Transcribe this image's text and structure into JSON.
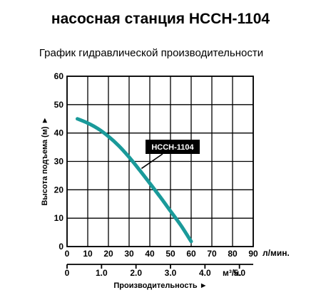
{
  "title": "насосная станция НССН-1104",
  "subtitle": "График гидравлической производительности",
  "chart_data": {
    "type": "line",
    "xlabel": "Производительность ►",
    "ylabel": "Высота подъема (м) ►",
    "x_unit_top": "л/мин.",
    "x_unit_bottom": "м³/ч.",
    "xlim": [
      0,
      90
    ],
    "ylim": [
      0,
      60
    ],
    "x_ticks": [
      "0",
      "10",
      "20",
      "30",
      "40",
      "50",
      "60",
      "70",
      "80",
      "90"
    ],
    "y_ticks": [
      "0",
      "10",
      "20",
      "30",
      "40",
      "50",
      "60"
    ],
    "secondary_x_ticks": [
      {
        "label": "0",
        "value": 0
      },
      {
        "label": "1.0",
        "value": 16.67
      },
      {
        "label": "2.0",
        "value": 33.33
      },
      {
        "label": "3.0",
        "value": 50
      },
      {
        "label": "4.0",
        "value": 66.67
      },
      {
        "label": "5.0",
        "value": 83.33
      }
    ],
    "grid": true,
    "series": [
      {
        "name": "НССН-1104",
        "color": "#1a9a9a",
        "x": [
          5,
          10,
          15,
          20,
          25,
          30,
          35,
          40,
          45,
          50,
          55,
          60
        ],
        "y": [
          45,
          43.5,
          41.5,
          38.8,
          35.5,
          31.5,
          27,
          22.3,
          17.5,
          12.5,
          7.5,
          1.8
        ]
      }
    ]
  }
}
